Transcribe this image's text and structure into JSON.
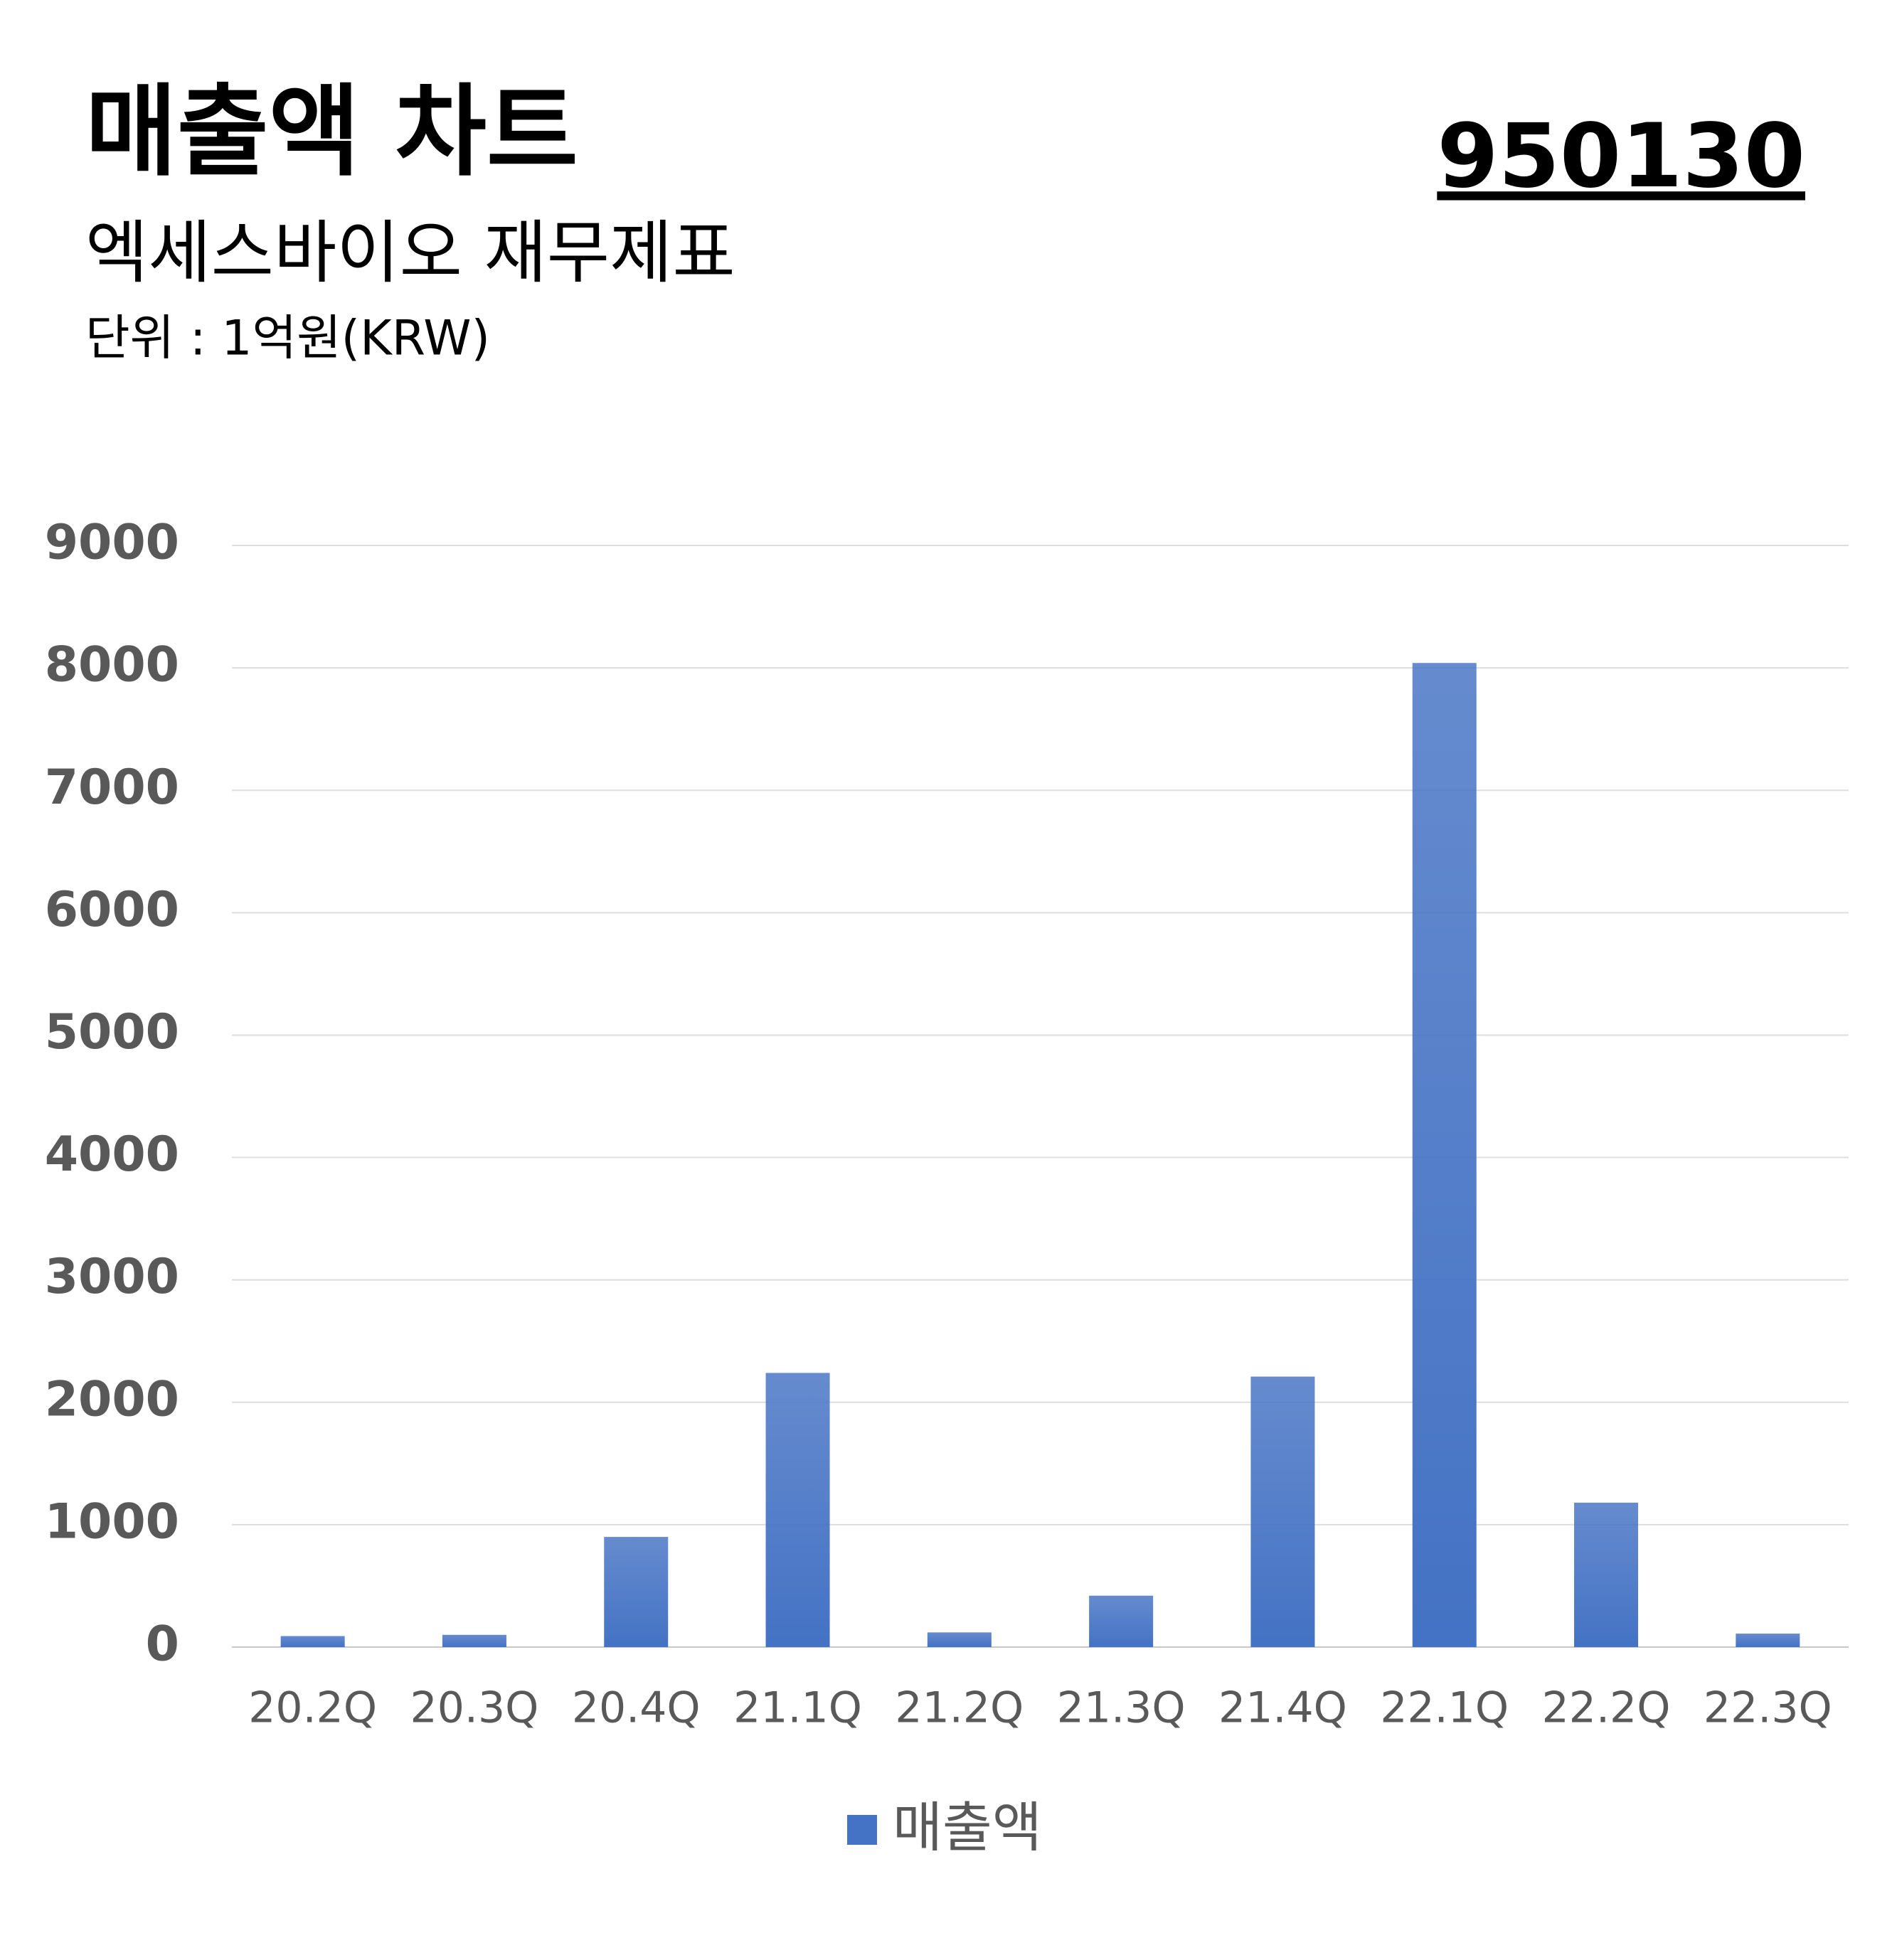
{
  "chart_data": {
    "type": "bar",
    "title": "매출액 차트",
    "subtitle": "엑세스바이오 재무제표",
    "unit": "단위 : 1억원(KRW)",
    "code": "950130",
    "categories": [
      "20.2Q",
      "20.3Q",
      "20.4Q",
      "21.1Q",
      "21.2Q",
      "21.3Q",
      "21.4Q",
      "22.1Q",
      "22.2Q",
      "22.3Q"
    ],
    "series": [
      {
        "name": "매출액",
        "color": "#4472c4",
        "values": [
          90,
          100,
          900,
          2240,
          120,
          420,
          2210,
          8040,
          1180,
          110
        ]
      }
    ],
    "ylim": [
      0,
      9000
    ],
    "yticks": [
      0,
      1000,
      2000,
      3000,
      4000,
      5000,
      6000,
      7000,
      8000,
      9000
    ],
    "grid": true,
    "legend": "bottom"
  }
}
